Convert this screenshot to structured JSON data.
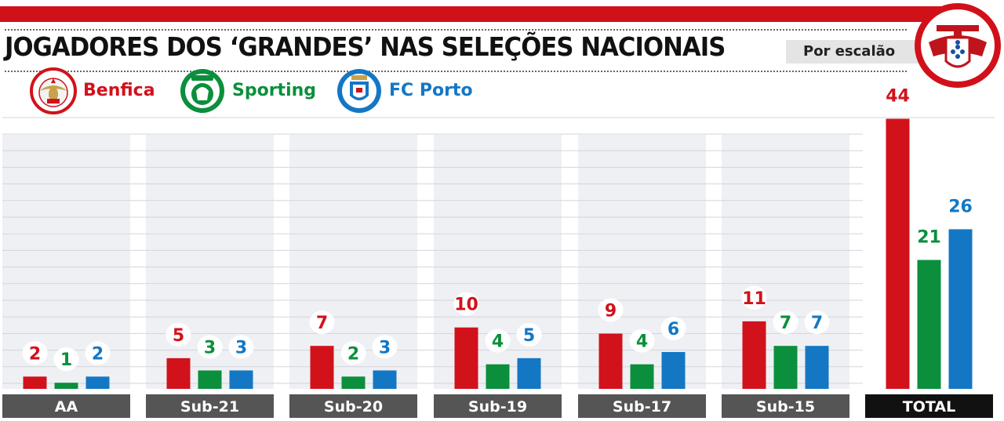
{
  "title": "JOGADORES DOS ‘GRANDES’ NAS SELEÇÕES NACIONAIS",
  "subtitle": "Por escalão",
  "legend": [
    {
      "name": "Benfica",
      "color": "#d1121b",
      "icon": "benfica-eagle-icon"
    },
    {
      "name": "Sporting",
      "color": "#0b8f3c",
      "icon": "sporting-lion-icon"
    },
    {
      "name": "FC Porto",
      "color": "#1477c4",
      "icon": "porto-crest-icon"
    }
  ],
  "chart_data": {
    "type": "bar",
    "title": "JOGADORES DOS ‘GRANDES’ NAS SELEÇÕES NACIONAIS",
    "subtitle": "Por escalão",
    "categories": [
      "AA",
      "Sub-21",
      "Sub-20",
      "Sub-19",
      "Sub-17",
      "Sub-15",
      "TOTAL"
    ],
    "series": [
      {
        "name": "Benfica",
        "color": "#d1121b",
        "values": [
          2,
          5,
          7,
          10,
          9,
          11,
          44
        ]
      },
      {
        "name": "Sporting",
        "color": "#0b8f3c",
        "values": [
          1,
          3,
          2,
          4,
          4,
          7,
          21
        ]
      },
      {
        "name": "FC Porto",
        "color": "#1477c4",
        "values": [
          2,
          3,
          3,
          5,
          6,
          7,
          26
        ]
      }
    ],
    "ylim": [
      0,
      44
    ],
    "grid": true,
    "legend_position": "top-left",
    "xlabel": "",
    "ylabel": ""
  }
}
